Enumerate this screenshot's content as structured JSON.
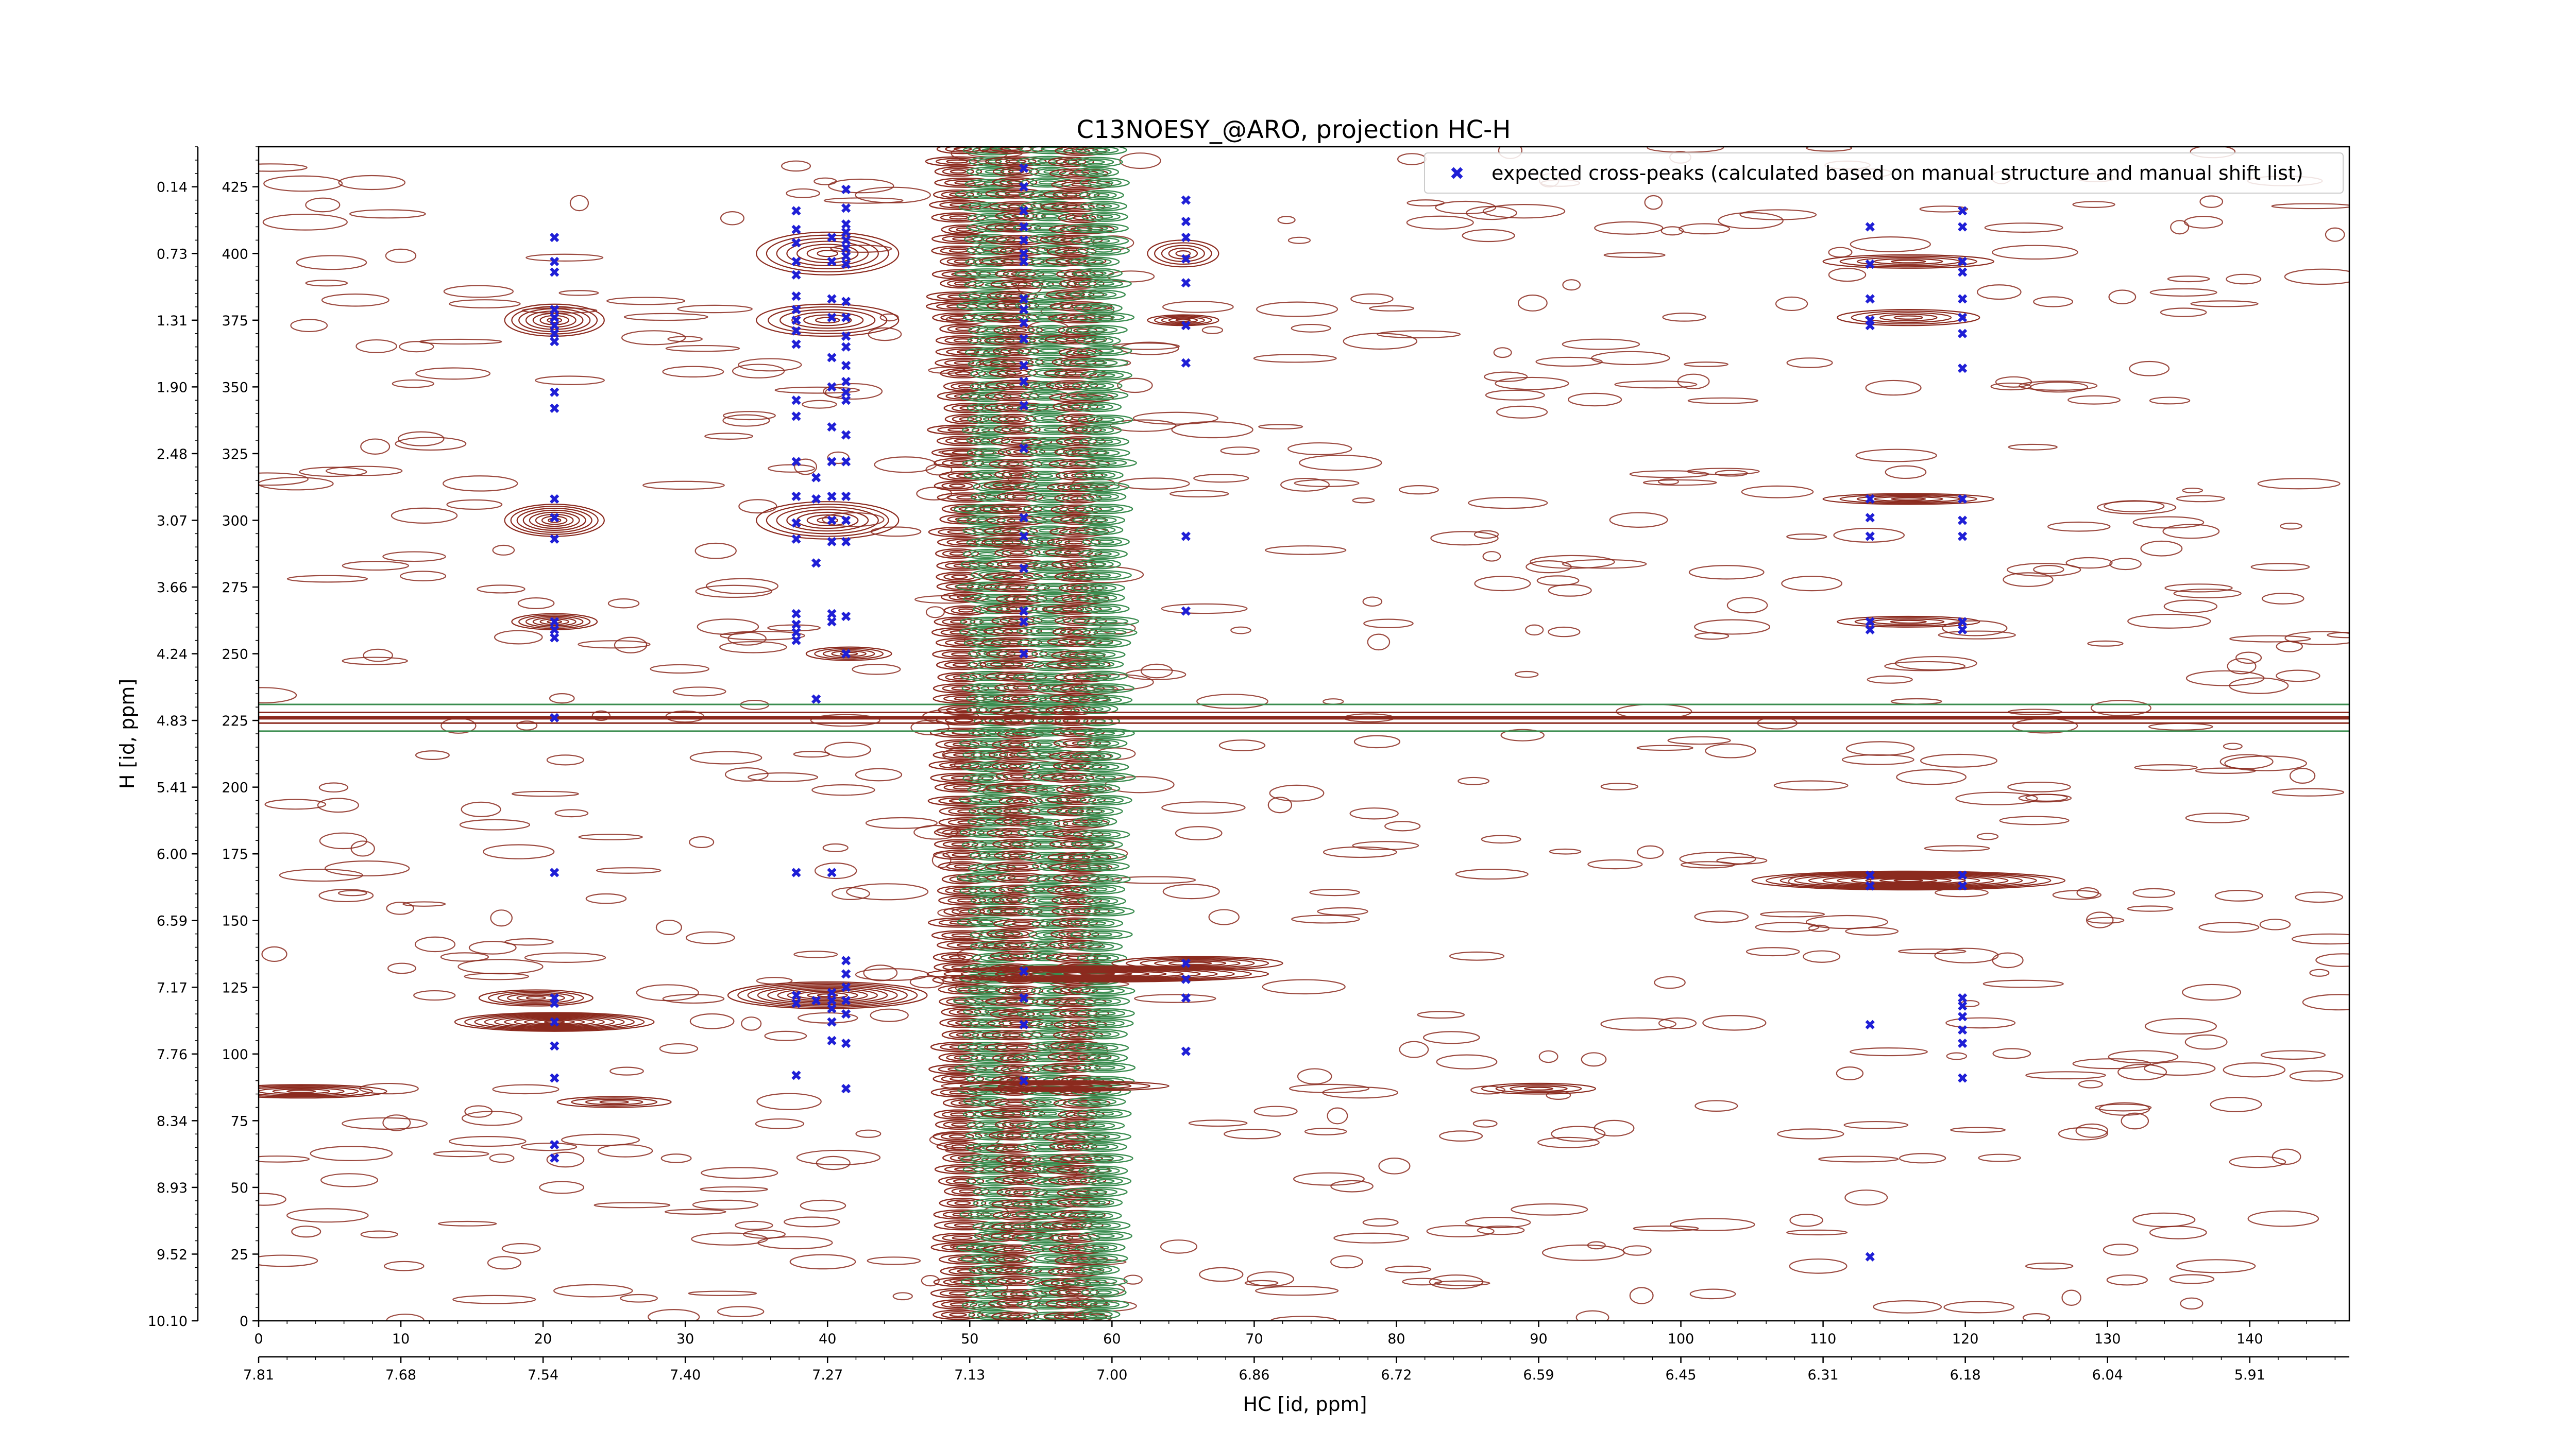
{
  "chart_data": {
    "type": "contour",
    "title": "C13NOESY_@ARO, projection HC-H",
    "xlabel": "HC [id, ppm]",
    "ylabel": "H [id, ppm]",
    "xlim": [
      0,
      147
    ],
    "ylim": [
      0,
      440
    ],
    "x_ticks": [
      0,
      10,
      20,
      30,
      40,
      50,
      60,
      70,
      80,
      90,
      100,
      110,
      120,
      130,
      140
    ],
    "x_ppm_ticks": [
      "7.81",
      "7.68",
      "7.54",
      "7.40",
      "7.27",
      "7.13",
      "7.00",
      "6.86",
      "6.72",
      "6.59",
      "6.45",
      "6.31",
      "6.18",
      "6.04",
      "5.91"
    ],
    "y_ticks": [
      0,
      25,
      50,
      75,
      100,
      125,
      150,
      175,
      200,
      225,
      250,
      275,
      300,
      325,
      350,
      375,
      400,
      425
    ],
    "y_ppm_ticks": [
      "10.10",
      "9.52",
      "8.93",
      "8.34",
      "7.76",
      "7.17",
      "6.59",
      "6.00",
      "5.41",
      "4.83",
      "4.24",
      "3.66",
      "3.07",
      "2.48",
      "1.90",
      "1.31",
      "0.73",
      "0.14"
    ],
    "legend": {
      "placement": "top-right",
      "entries": [
        "expected cross-peaks (calculated based on manual structure and manual shift list)"
      ]
    },
    "colors": {
      "positive_contour": "#8b2a1e",
      "negative_contour": "#3a8c4f",
      "peaks": "#1f1fd6"
    },
    "series": [
      {
        "name": "expected cross-peaks (calculated based on manual structure and manual shift list)",
        "points": [
          [
            20.8,
            406
          ],
          [
            20.8,
            397
          ],
          [
            20.8,
            393
          ],
          [
            20.8,
            379
          ],
          [
            20.8,
            376
          ],
          [
            20.8,
            373
          ],
          [
            20.8,
            370
          ],
          [
            20.8,
            367
          ],
          [
            20.8,
            348
          ],
          [
            20.8,
            342
          ],
          [
            20.8,
            308
          ],
          [
            20.8,
            301
          ],
          [
            20.8,
            293
          ],
          [
            20.8,
            262
          ],
          [
            20.8,
            259
          ],
          [
            20.8,
            256
          ],
          [
            20.8,
            226
          ],
          [
            20.8,
            168
          ],
          [
            20.8,
            121
          ],
          [
            20.8,
            119
          ],
          [
            20.8,
            112
          ],
          [
            20.8,
            103
          ],
          [
            20.8,
            91
          ],
          [
            20.8,
            66
          ],
          [
            20.8,
            61
          ],
          [
            37.8,
            416
          ],
          [
            37.8,
            409
          ],
          [
            37.8,
            404
          ],
          [
            37.8,
            397
          ],
          [
            37.8,
            392
          ],
          [
            37.8,
            384
          ],
          [
            37.8,
            379
          ],
          [
            37.8,
            375
          ],
          [
            37.8,
            371
          ],
          [
            37.8,
            366
          ],
          [
            37.8,
            345
          ],
          [
            37.8,
            339
          ],
          [
            37.8,
            322
          ],
          [
            37.8,
            309
          ],
          [
            37.8,
            299
          ],
          [
            37.8,
            293
          ],
          [
            37.8,
            265
          ],
          [
            37.8,
            261
          ],
          [
            37.8,
            258
          ],
          [
            37.8,
            255
          ],
          [
            37.8,
            168
          ],
          [
            37.8,
            122
          ],
          [
            37.8,
            119
          ],
          [
            37.8,
            92
          ],
          [
            39.2,
            316
          ],
          [
            39.2,
            308
          ],
          [
            39.2,
            284
          ],
          [
            39.2,
            233
          ],
          [
            39.2,
            120
          ],
          [
            40.3,
            406
          ],
          [
            40.3,
            397
          ],
          [
            40.3,
            383
          ],
          [
            40.3,
            376
          ],
          [
            40.3,
            361
          ],
          [
            40.3,
            350
          ],
          [
            40.3,
            335
          ],
          [
            40.3,
            322
          ],
          [
            40.3,
            309
          ],
          [
            40.3,
            300
          ],
          [
            40.3,
            292
          ],
          [
            40.3,
            265
          ],
          [
            40.3,
            262
          ],
          [
            40.3,
            168
          ],
          [
            40.3,
            123
          ],
          [
            40.3,
            120
          ],
          [
            40.3,
            117
          ],
          [
            40.3,
            112
          ],
          [
            40.3,
            105
          ],
          [
            41.3,
            424
          ],
          [
            41.3,
            417
          ],
          [
            41.3,
            411
          ],
          [
            41.3,
            408
          ],
          [
            41.3,
            405
          ],
          [
            41.3,
            402
          ],
          [
            41.3,
            399
          ],
          [
            41.3,
            396
          ],
          [
            41.3,
            382
          ],
          [
            41.3,
            376
          ],
          [
            41.3,
            369
          ],
          [
            41.3,
            365
          ],
          [
            41.3,
            358
          ],
          [
            41.3,
            352
          ],
          [
            41.3,
            348
          ],
          [
            41.3,
            345
          ],
          [
            41.3,
            332
          ],
          [
            41.3,
            322
          ],
          [
            41.3,
            309
          ],
          [
            41.3,
            300
          ],
          [
            41.3,
            292
          ],
          [
            41.3,
            264
          ],
          [
            41.3,
            250
          ],
          [
            41.3,
            135
          ],
          [
            41.3,
            130
          ],
          [
            41.3,
            125
          ],
          [
            41.3,
            120
          ],
          [
            41.3,
            115
          ],
          [
            41.3,
            104
          ],
          [
            41.3,
            87
          ],
          [
            53.8,
            432
          ],
          [
            53.8,
            425
          ],
          [
            53.8,
            416
          ],
          [
            53.8,
            410
          ],
          [
            53.8,
            405
          ],
          [
            53.8,
            400
          ],
          [
            53.8,
            397
          ],
          [
            53.8,
            383
          ],
          [
            53.8,
            379
          ],
          [
            53.8,
            374
          ],
          [
            53.8,
            368
          ],
          [
            53.8,
            358
          ],
          [
            53.8,
            352
          ],
          [
            53.8,
            343
          ],
          [
            53.8,
            327
          ],
          [
            53.8,
            301
          ],
          [
            53.8,
            294
          ],
          [
            53.8,
            282
          ],
          [
            53.8,
            266
          ],
          [
            53.8,
            262
          ],
          [
            53.8,
            250
          ],
          [
            53.8,
            131
          ],
          [
            53.8,
            121
          ],
          [
            53.8,
            111
          ],
          [
            53.8,
            90
          ],
          [
            65.2,
            420
          ],
          [
            65.2,
            412
          ],
          [
            65.2,
            406
          ],
          [
            65.2,
            398
          ],
          [
            65.2,
            389
          ],
          [
            65.2,
            373
          ],
          [
            65.2,
            359
          ],
          [
            65.2,
            294
          ],
          [
            65.2,
            266
          ],
          [
            65.2,
            134
          ],
          [
            65.2,
            128
          ],
          [
            65.2,
            121
          ],
          [
            65.2,
            101
          ],
          [
            113.3,
            410
          ],
          [
            113.3,
            396
          ],
          [
            113.3,
            383
          ],
          [
            113.3,
            375
          ],
          [
            113.3,
            373
          ],
          [
            113.3,
            308
          ],
          [
            113.3,
            301
          ],
          [
            113.3,
            294
          ],
          [
            113.3,
            262
          ],
          [
            113.3,
            259
          ],
          [
            113.3,
            167
          ],
          [
            113.3,
            163
          ],
          [
            113.3,
            111
          ],
          [
            113.3,
            24
          ],
          [
            119.8,
            416
          ],
          [
            119.8,
            410
          ],
          [
            119.8,
            397
          ],
          [
            119.8,
            393
          ],
          [
            119.8,
            383
          ],
          [
            119.8,
            376
          ],
          [
            119.8,
            370
          ],
          [
            119.8,
            357
          ],
          [
            119.8,
            308
          ],
          [
            119.8,
            300
          ],
          [
            119.8,
            294
          ],
          [
            119.8,
            262
          ],
          [
            119.8,
            259
          ],
          [
            119.8,
            167
          ],
          [
            119.8,
            163
          ],
          [
            119.8,
            121
          ],
          [
            119.8,
            118
          ],
          [
            119.8,
            114
          ],
          [
            119.8,
            109
          ],
          [
            119.8,
            104
          ],
          [
            119.8,
            91
          ]
        ]
      }
    ]
  }
}
